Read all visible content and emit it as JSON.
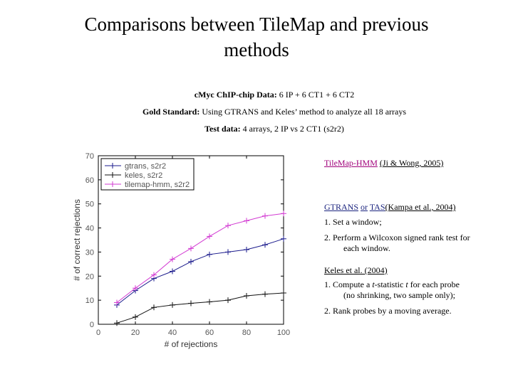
{
  "title": {
    "line1": "Comparisons between TileMap and previous",
    "line2": "methods"
  },
  "info": {
    "data_label": "cMyc ChIP-chip Data:",
    "data_value": "6 IP + 6 CT1 + 6 CT2",
    "gold_label": "Gold Standard:",
    "gold_value": "Using GTRANS and Keles’ method to analyze all 18 arrays",
    "test_label": "Test data:",
    "test_value": "4 arrays, 2 IP vs 2 CT1 (s2r2)"
  },
  "methods": {
    "tilemap_name": "TileMap-HMM",
    "tilemap_ref": "(Ji & Wong, 2005)",
    "gtrans_name": "GTRANS",
    "or_word": "or",
    "tas_name": "TAS",
    "gtrans_ref": "(Kampa et al., 2004)",
    "gtrans_step1": "1. Set a window;",
    "gtrans_step2a": "2. Perform a Wilcoxon signed rank test for",
    "gtrans_step2b": "each window.",
    "keles_name": "Keles et al. (2004)",
    "keles_step1a_pre": "1. Compute a ",
    "keles_step1a_t1": "t",
    "keles_step1a_mid": "-statistic ",
    "keles_step1a_t2": "t",
    "keles_step1a_post": " for each probe",
    "keles_step1b": "(no shrinking, two sample only);",
    "keles_step2": "2. Rank probes by a moving average."
  },
  "colors": {
    "gtrans": "#1a1a8c",
    "keles": "#111111",
    "tilemap": "#d23ad2"
  },
  "chart_data": {
    "type": "line",
    "title": "",
    "xlabel": "# of rejections",
    "ylabel": "# of correct rejections",
    "xlim": [
      0,
      100
    ],
    "ylim": [
      0,
      70
    ],
    "xticks": [
      0,
      20,
      40,
      60,
      80,
      100
    ],
    "yticks": [
      0,
      10,
      20,
      30,
      40,
      50,
      60,
      70
    ],
    "x": [
      10,
      20,
      30,
      40,
      50,
      60,
      70,
      80,
      90,
      100
    ],
    "series": [
      {
        "name": "gtrans, s2r2",
        "color": "#1a1a8c",
        "values": [
          8,
          14,
          19,
          22,
          26,
          29,
          30,
          31,
          33,
          35.5
        ]
      },
      {
        "name": "keles, s2r2",
        "color": "#111111",
        "values": [
          0.5,
          3,
          7,
          8,
          8.7,
          9.3,
          10,
          11.8,
          12.5,
          13
        ]
      },
      {
        "name": "tilemap-hmm, s2r2",
        "color": "#d23ad2",
        "values": [
          9,
          15,
          20.5,
          27,
          31.5,
          36.5,
          41,
          43,
          45,
          46
        ]
      }
    ],
    "legend_position": "top-left"
  }
}
